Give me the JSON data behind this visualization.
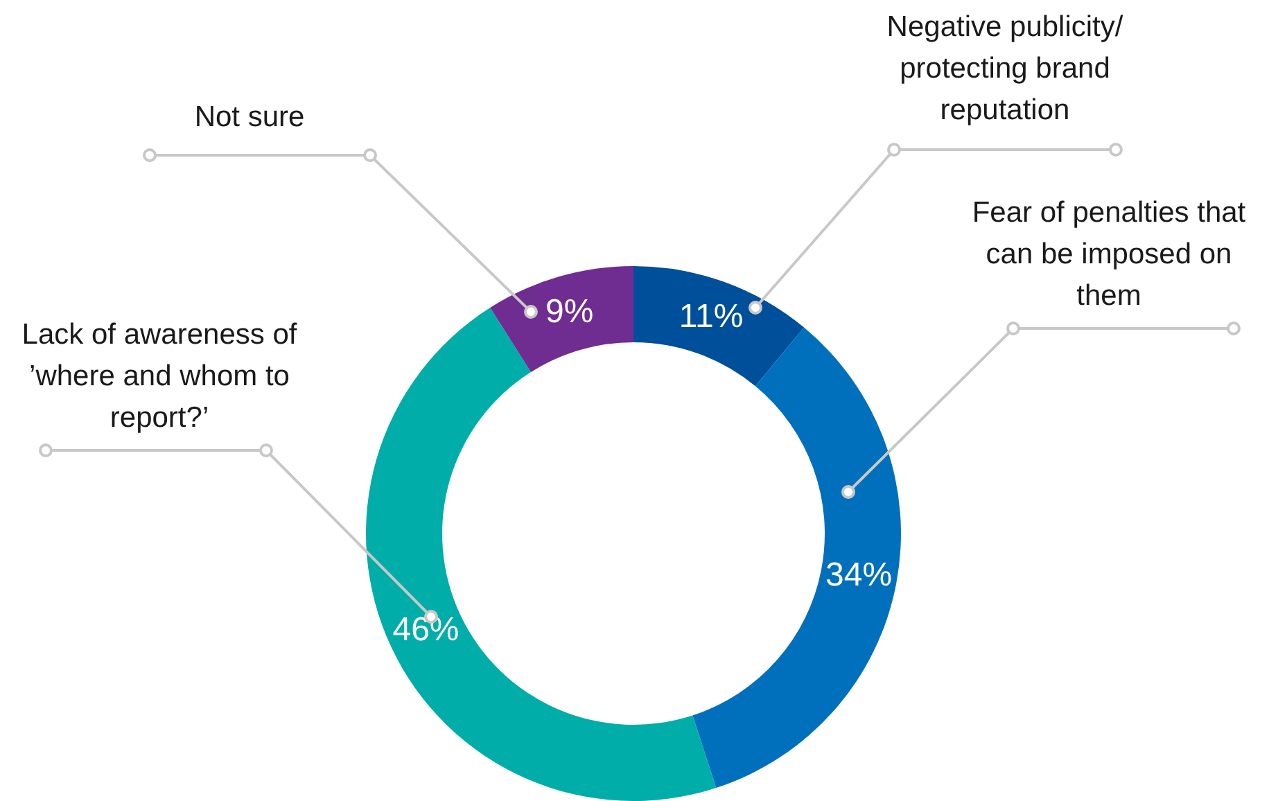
{
  "chart_data": {
    "type": "donut",
    "categories": [
      "Negative publicity/ protecting brand reputation",
      "Fear of penalties that can be imposed on them",
      "Lack of awareness of ’where and whom to report?’",
      "Not sure"
    ],
    "values": [
      11,
      34,
      46,
      9
    ],
    "value_labels": [
      "11%",
      "34%",
      "46%",
      "9%"
    ],
    "colors": [
      "#004f9a",
      "#0070bd",
      "#00ada8",
      "#6f2c91"
    ],
    "legend": false
  }
}
